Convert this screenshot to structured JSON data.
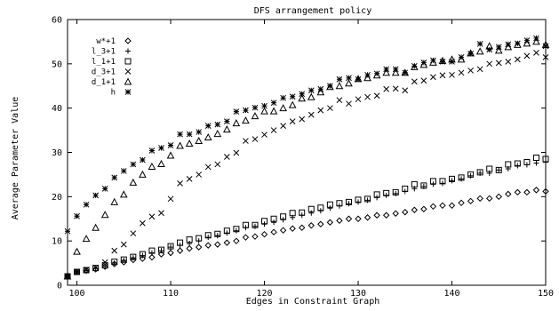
{
  "chart_data": {
    "type": "scatter",
    "title": "DFS arrangement policy",
    "xlabel": "Edges in Constraint Graph",
    "ylabel": "Average Parameter Value",
    "xlim": [
      99,
      150
    ],
    "ylim": [
      0,
      60
    ],
    "xticks": [
      100,
      110,
      120,
      130,
      140,
      150
    ],
    "yticks": [
      0,
      10,
      20,
      30,
      40,
      50,
      60
    ],
    "grid": false,
    "legend_position": "top-left",
    "colors": {
      "marks": "#000000",
      "axis": "#000000",
      "background": "#ffffff"
    },
    "x": [
      99,
      100,
      101,
      102,
      103,
      104,
      105,
      106,
      107,
      108,
      109,
      110,
      111,
      112,
      113,
      114,
      115,
      116,
      117,
      118,
      119,
      120,
      121,
      122,
      123,
      124,
      125,
      126,
      127,
      128,
      129,
      130,
      131,
      132,
      133,
      134,
      135,
      136,
      137,
      138,
      139,
      140,
      141,
      142,
      143,
      144,
      145,
      146,
      147,
      148,
      149,
      150
    ],
    "series": [
      {
        "name": "w*+1",
        "marker": "diamond",
        "values": [
          2.0,
          3.0,
          3.3,
          3.6,
          4.2,
          4.8,
          5.2,
          5.7,
          6.0,
          6.3,
          7.0,
          7.3,
          7.8,
          8.3,
          8.6,
          9.0,
          9.2,
          9.6,
          10.0,
          10.8,
          11.0,
          11.5,
          12.0,
          12.4,
          12.8,
          13.0,
          13.5,
          13.8,
          14.2,
          14.6,
          15.0,
          15.0,
          15.3,
          15.8,
          15.8,
          16.2,
          16.5,
          17.0,
          17.2,
          17.8,
          18.0,
          18.0,
          18.6,
          19.0,
          19.6,
          19.6,
          20.0,
          20.6,
          21.0,
          21.0,
          21.5,
          21.2
        ]
      },
      {
        "name": "l_3+1",
        "marker": "plus",
        "values": [
          2.0,
          3.0,
          3.3,
          3.8,
          4.3,
          5.0,
          5.6,
          6.2,
          6.7,
          7.3,
          7.8,
          8.6,
          9.0,
          9.4,
          10.0,
          10.8,
          11.2,
          11.8,
          12.3,
          13.0,
          13.3,
          13.8,
          14.2,
          14.8,
          15.3,
          15.8,
          16.3,
          16.8,
          17.4,
          17.9,
          18.4,
          18.8,
          19.2,
          19.8,
          20.3,
          20.7,
          21.2,
          21.8,
          22.3,
          22.8,
          23.0,
          23.6,
          24.0,
          24.7,
          25.3,
          25.3,
          26.0,
          26.3,
          27.0,
          27.2,
          27.6,
          27.8
        ]
      },
      {
        "name": "l_1+1",
        "marker": "square",
        "values": [
          2.0,
          3.0,
          3.4,
          3.9,
          4.5,
          5.3,
          5.8,
          6.4,
          7.0,
          7.8,
          8.0,
          8.8,
          9.6,
          10.3,
          10.6,
          11.3,
          11.6,
          12.3,
          12.7,
          13.6,
          13.6,
          14.5,
          15.0,
          15.5,
          16.3,
          16.4,
          17.2,
          17.5,
          18.2,
          18.5,
          18.8,
          19.3,
          19.5,
          20.5,
          20.8,
          21.0,
          21.8,
          22.8,
          22.5,
          23.5,
          23.5,
          24.0,
          24.3,
          25.0,
          25.5,
          26.3,
          26.0,
          27.3,
          27.5,
          27.8,
          28.8,
          28.5
        ]
      },
      {
        "name": "d_3+1",
        "marker": "cross",
        "values": [
          2.0,
          3.0,
          3.5,
          4.0,
          5.2,
          7.8,
          9.2,
          11.7,
          14.0,
          15.5,
          16.3,
          19.5,
          23.0,
          24.0,
          25.0,
          26.7,
          27.3,
          29.0,
          29.9,
          32.6,
          33.0,
          34.0,
          35.0,
          36.0,
          37.0,
          37.5,
          38.5,
          39.5,
          40.0,
          41.8,
          41.0,
          42.0,
          42.5,
          42.8,
          44.3,
          44.4,
          44.0,
          46.0,
          46.2,
          47.0,
          47.4,
          47.5,
          48.0,
          48.5,
          48.8,
          50.0,
          50.2,
          50.5,
          51.0,
          51.8,
          52.5,
          51.5
        ]
      },
      {
        "name": "d_1+1",
        "marker": "triangle",
        "values": [
          2.0,
          7.6,
          10.5,
          13.0,
          15.9,
          18.8,
          20.5,
          23.2,
          25.0,
          26.8,
          27.4,
          29.3,
          31.5,
          32.0,
          32.6,
          33.4,
          34.2,
          35.2,
          36.6,
          37.2,
          38.2,
          39.3,
          39.3,
          40.0,
          40.7,
          42.2,
          42.5,
          43.6,
          44.8,
          45.0,
          45.6,
          46.6,
          46.8,
          47.4,
          48.0,
          48.0,
          48.0,
          49.3,
          49.8,
          50.3,
          50.7,
          51.0,
          51.0,
          52.4,
          52.8,
          54.0,
          53.0,
          53.8,
          54.3,
          54.6,
          55.0,
          54.3
        ]
      },
      {
        "name": "h",
        "marker": "star",
        "values": [
          12.2,
          15.6,
          18.2,
          20.3,
          21.8,
          24.3,
          25.8,
          27.3,
          28.3,
          30.4,
          31.0,
          31.6,
          34.1,
          34.1,
          34.6,
          36.0,
          36.3,
          37.0,
          39.2,
          39.5,
          40.1,
          40.5,
          41.2,
          42.3,
          42.6,
          43.2,
          44.0,
          44.3,
          45.0,
          46.5,
          46.8,
          46.5,
          47.5,
          47.8,
          48.8,
          48.8,
          48.0,
          49.5,
          50.3,
          50.8,
          50.5,
          50.5,
          51.5,
          52.3,
          54.5,
          53.2,
          53.8,
          54.4,
          54.6,
          55.3,
          55.8,
          54.0
        ]
      }
    ]
  }
}
